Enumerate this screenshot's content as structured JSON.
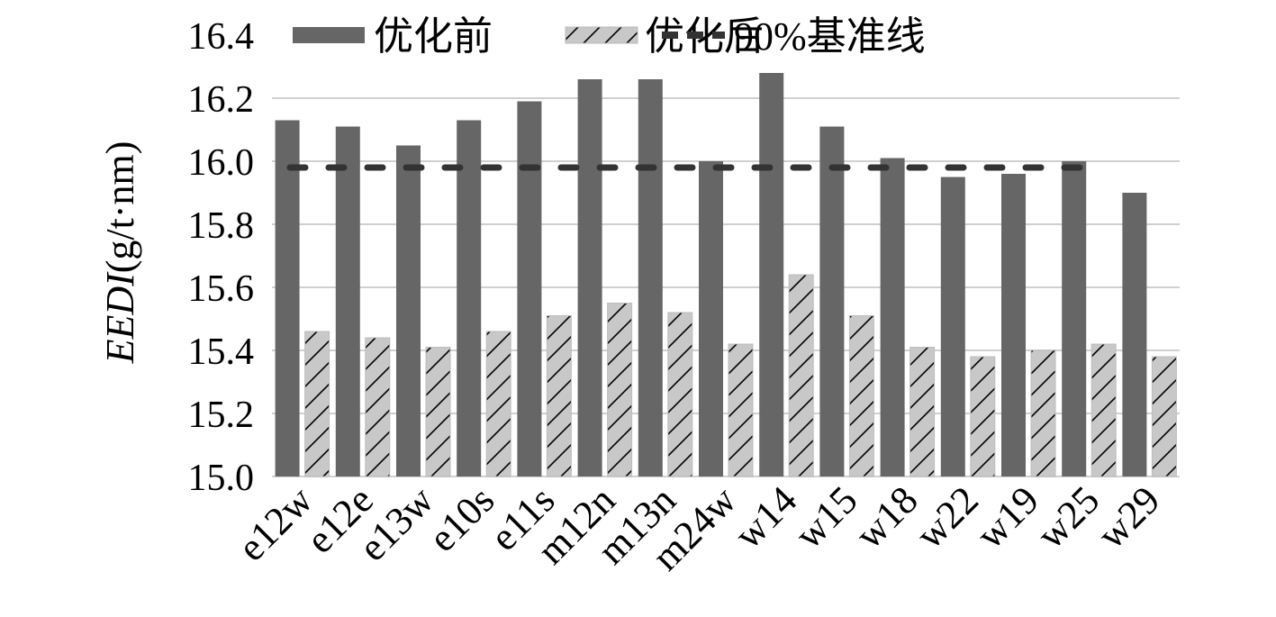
{
  "chart_data": {
    "type": "bar",
    "ylabel_italic": "EEDI",
    "ylabel_rest": "(g/t·nm)",
    "ylim": [
      15.0,
      16.4
    ],
    "yticks": [
      "15.0",
      "15.2",
      "15.4",
      "15.6",
      "15.8",
      "16.0",
      "16.2",
      "16.4"
    ],
    "grid": true,
    "legend_position": "top",
    "categories": [
      "e12w",
      "e12e",
      "e13w",
      "e10s",
      "e11s",
      "m12n",
      "m13n",
      "m24w",
      "w14",
      "w15",
      "w18",
      "w22",
      "w19",
      "w25",
      "w29"
    ],
    "series": [
      {
        "name": "优化前",
        "color": "#666666",
        "style": "solid",
        "values": [
          16.13,
          16.11,
          16.05,
          16.13,
          16.19,
          16.26,
          16.26,
          16.0,
          16.28,
          16.11,
          16.01,
          15.95,
          15.96,
          16.0,
          15.9
        ]
      },
      {
        "name": "优化后",
        "color": "#c8c8c8",
        "style": "hatched",
        "values": [
          15.46,
          15.44,
          15.41,
          15.46,
          15.51,
          15.55,
          15.52,
          15.42,
          15.64,
          15.51,
          15.41,
          15.38,
          15.4,
          15.42,
          15.38
        ]
      }
    ],
    "reference_line": {
      "name": "90%基准线",
      "value": 15.98,
      "color": "#333333",
      "style": "dashed"
    }
  }
}
